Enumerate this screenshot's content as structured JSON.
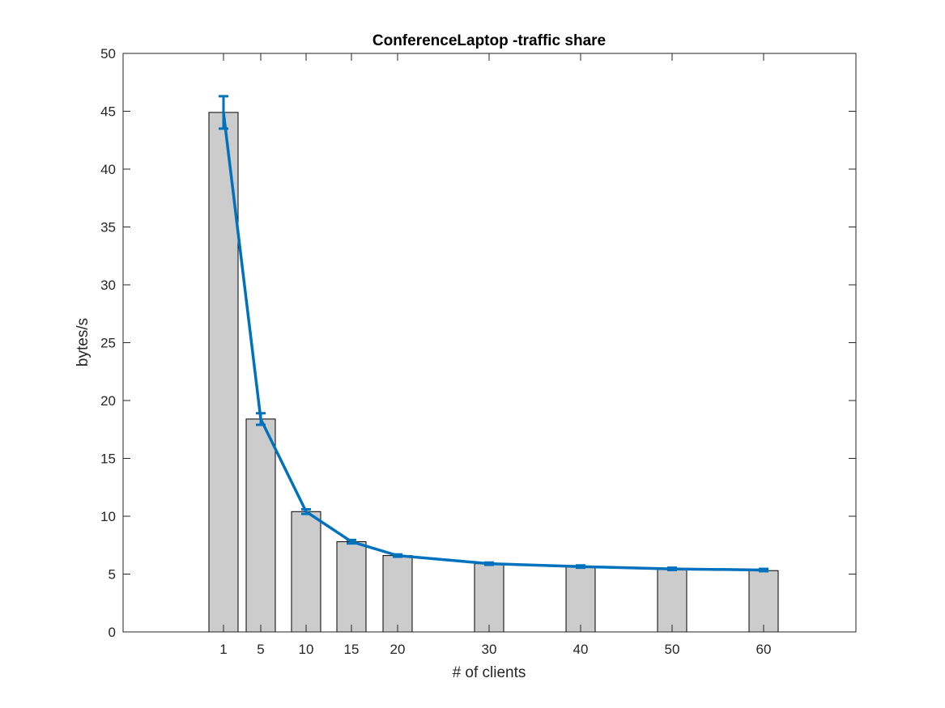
{
  "chart_data": {
    "type": "bar",
    "title": "ConferenceLaptop -traffic share",
    "xlabel": "# of clients",
    "ylabel": "bytes/s",
    "ylim": [
      0,
      50
    ],
    "yticks": [
      0,
      5,
      10,
      15,
      20,
      25,
      30,
      35,
      40,
      45,
      50
    ],
    "xlim": [
      -20,
      76
    ],
    "x": [
      1,
      5,
      10,
      15,
      20,
      30,
      40,
      50,
      60
    ],
    "xtick_labels": [
      "1",
      "5",
      "10",
      "15",
      "20",
      "30",
      "40",
      "50",
      "60"
    ],
    "bar_values": [
      44.9,
      18.4,
      10.4,
      7.8,
      6.6,
      5.9,
      5.6,
      5.4,
      5.3
    ],
    "line_series": {
      "values": [
        44.9,
        18.4,
        10.4,
        7.8,
        6.6,
        5.9,
        5.65,
        5.45,
        5.35
      ],
      "error_low": [
        1.4,
        0.5,
        0.2,
        0.15,
        0.1,
        0.1,
        0.1,
        0.1,
        0.1
      ],
      "error_high": [
        1.4,
        0.5,
        0.2,
        0.15,
        0.1,
        0.1,
        0.1,
        0.1,
        0.1
      ]
    },
    "bar_color": "#cccccc",
    "line_color": "#0072bd",
    "grid": false,
    "box": true
  }
}
